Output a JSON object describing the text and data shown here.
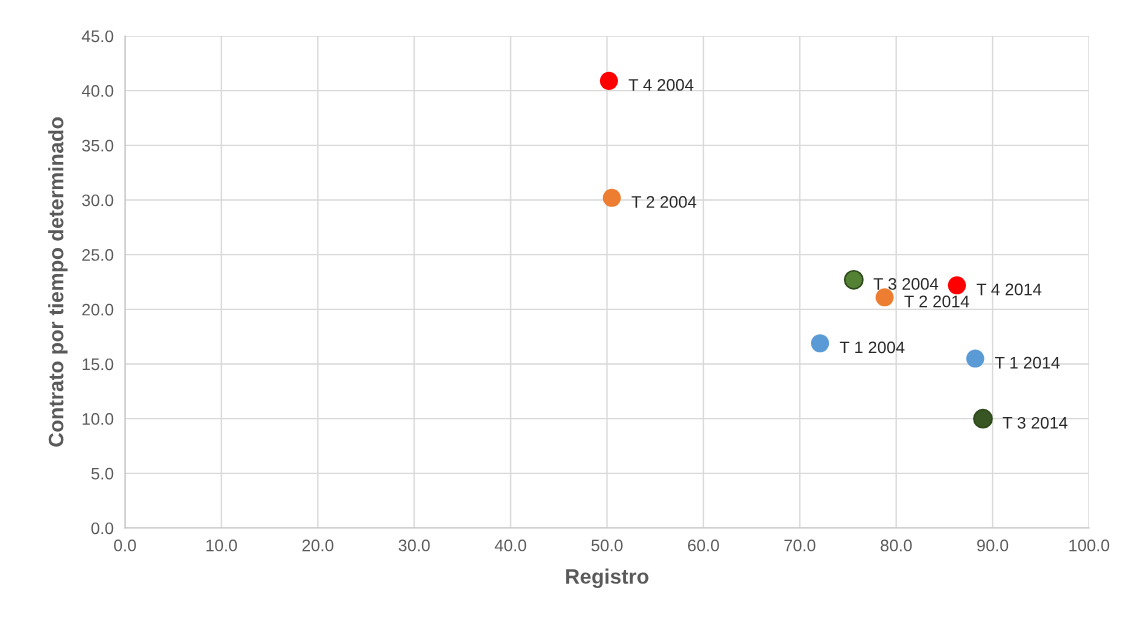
{
  "chart_data": {
    "type": "scatter",
    "xlabel": "Registro",
    "ylabel": "Contrato por tiempo determinado",
    "x": [
      50.2,
      50.5,
      75.6,
      78.8,
      86.3,
      72.1,
      88.2,
      89.0
    ],
    "values": [
      40.9,
      30.2,
      22.7,
      21.1,
      22.2,
      16.9,
      15.5,
      10.0
    ],
    "colors": [
      "#ff0000",
      "#ed7d31",
      "#548235",
      "#ed7d31",
      "#ff0000",
      "#5b9bd5",
      "#5b9bd5",
      "#375623"
    ],
    "annotations": [
      {
        "text": "T 4 2004",
        "x": 50.2,
        "y": 40.9
      },
      {
        "text": "T 2 2004",
        "x": 50.5,
        "y": 30.2
      },
      {
        "text": "T 3 2004",
        "x": 75.6,
        "y": 22.7
      },
      {
        "text": "T 2 2014",
        "x": 78.8,
        "y": 21.1
      },
      {
        "text": "T 4 2014",
        "x": 86.3,
        "y": 22.2
      },
      {
        "text": "T 1 2004",
        "x": 72.1,
        "y": 16.9
      },
      {
        "text": "T 1 2014",
        "x": 88.2,
        "y": 15.5
      },
      {
        "text": "T 3 2014",
        "x": 89.0,
        "y": 10.0
      }
    ],
    "xlim": [
      0,
      100
    ],
    "xticks": [
      {
        "value": 0,
        "label": "0.0"
      },
      {
        "value": 10,
        "label": "10.0"
      },
      {
        "value": 20,
        "label": "20.0"
      },
      {
        "value": 30,
        "label": "30.0"
      },
      {
        "value": 40,
        "label": "40.0"
      },
      {
        "value": 50,
        "label": "50.0"
      },
      {
        "value": 60,
        "label": "60.0"
      },
      {
        "value": 70,
        "label": "70.0"
      },
      {
        "value": 80,
        "label": "80.0"
      },
      {
        "value": 90,
        "label": "90.0"
      },
      {
        "value": 100,
        "label": "100.0"
      }
    ],
    "ylim": [
      0,
      45
    ],
    "yticks": [
      {
        "value": 0,
        "label": "0.0"
      },
      {
        "value": 5,
        "label": "5.0"
      },
      {
        "value": 10,
        "label": "10.0"
      },
      {
        "value": 15,
        "label": "15.0"
      },
      {
        "value": 20,
        "label": "20.0"
      },
      {
        "value": 25,
        "label": "25.0"
      },
      {
        "value": 30,
        "label": "30.0"
      },
      {
        "value": 35,
        "label": "35.0"
      },
      {
        "value": 40,
        "label": "40.0"
      },
      {
        "value": 45,
        "label": "45.0"
      }
    ],
    "grid": true,
    "marker": "circle"
  }
}
